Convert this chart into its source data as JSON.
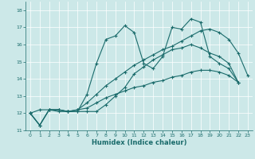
{
  "xlabel": "Humidex (Indice chaleur)",
  "background_color": "#cce8e8",
  "line_color": "#1a6b6b",
  "xlim": [
    -0.5,
    23.5
  ],
  "ylim": [
    11,
    18.5
  ],
  "yticks": [
    11,
    12,
    13,
    14,
    15,
    16,
    17,
    18
  ],
  "xticks": [
    0,
    1,
    2,
    3,
    4,
    5,
    6,
    7,
    8,
    9,
    10,
    11,
    12,
    13,
    14,
    15,
    16,
    17,
    18,
    19,
    20,
    21,
    22,
    23
  ],
  "series": [
    [
      12.0,
      11.3,
      12.2,
      12.2,
      12.1,
      12.1,
      13.1,
      14.9,
      16.3,
      16.5,
      17.1,
      16.7,
      14.9,
      14.6,
      15.3,
      17.0,
      16.9,
      17.5,
      17.3,
      15.3,
      14.9,
      14.6,
      13.8
    ],
    [
      12.0,
      11.3,
      12.2,
      12.2,
      12.1,
      12.1,
      12.1,
      12.1,
      12.5,
      13.0,
      13.5,
      14.3,
      14.7,
      15.1,
      15.4,
      15.7,
      15.8,
      16.0,
      15.8,
      15.5,
      15.3,
      14.9,
      13.8
    ],
    [
      12.0,
      11.3,
      12.2,
      12.2,
      12.1,
      12.2,
      12.3,
      12.6,
      12.9,
      13.1,
      13.3,
      13.5,
      13.6,
      13.8,
      13.9,
      14.1,
      14.2,
      14.4,
      14.5,
      14.5,
      14.4,
      14.2,
      13.8
    ],
    [
      12.0,
      12.2,
      12.2,
      12.1,
      12.1,
      12.2,
      12.6,
      13.1,
      13.6,
      14.0,
      14.4,
      14.8,
      15.1,
      15.4,
      15.7,
      15.9,
      16.2,
      16.5,
      16.8,
      16.9,
      16.7,
      16.3,
      15.5,
      14.2
    ]
  ],
  "series_x": [
    [
      0,
      1,
      2,
      3,
      4,
      5,
      6,
      7,
      8,
      9,
      10,
      11,
      12,
      13,
      14,
      15,
      16,
      17,
      18,
      19,
      20,
      21,
      22
    ],
    [
      0,
      1,
      2,
      3,
      4,
      5,
      6,
      7,
      8,
      9,
      10,
      11,
      12,
      13,
      14,
      15,
      16,
      17,
      18,
      19,
      20,
      21,
      22
    ],
    [
      0,
      1,
      2,
      3,
      4,
      5,
      6,
      7,
      8,
      9,
      10,
      11,
      12,
      13,
      14,
      15,
      16,
      17,
      18,
      19,
      20,
      21,
      22
    ],
    [
      0,
      1,
      2,
      3,
      4,
      5,
      6,
      7,
      8,
      9,
      10,
      11,
      12,
      13,
      14,
      15,
      16,
      17,
      18,
      19,
      20,
      21,
      22,
      23
    ]
  ]
}
